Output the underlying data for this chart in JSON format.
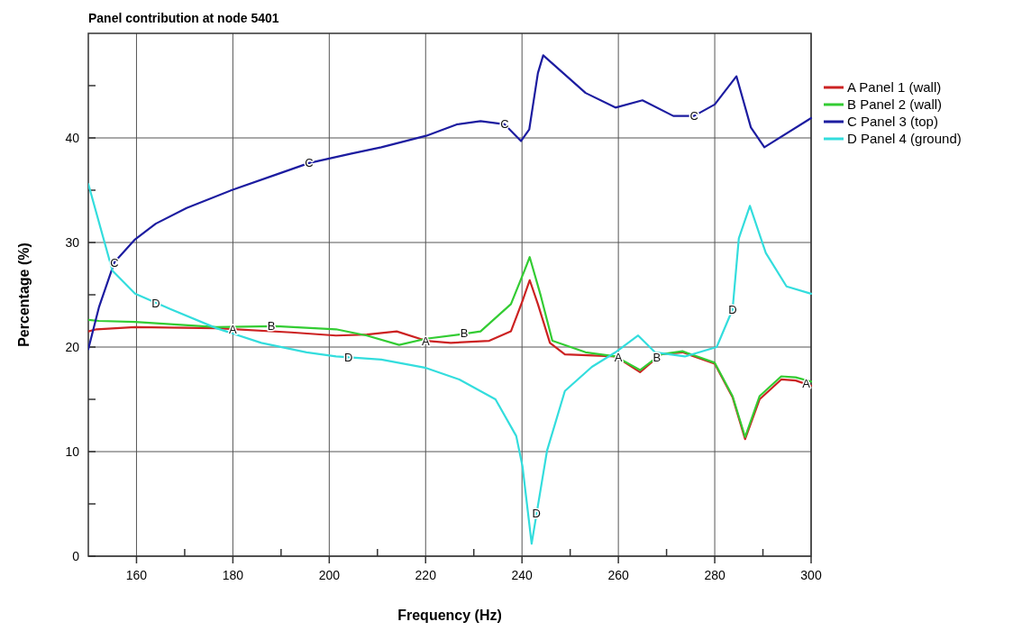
{
  "chart_data": {
    "type": "line",
    "title": "Panel contribution at node 5401",
    "xlabel": "Frequency (Hz)",
    "ylabel": "Percentage (%)",
    "xlim": [
      150,
      300
    ],
    "xticks": [
      {
        "value": 160,
        "label": "160"
      },
      {
        "value": 170,
        "label": null
      },
      {
        "value": 180,
        "label": "180"
      },
      {
        "value": 190,
        "label": null
      },
      {
        "value": 200,
        "label": "200"
      },
      {
        "value": 210,
        "label": null
      },
      {
        "value": 220,
        "label": "220"
      },
      {
        "value": 230,
        "label": null
      },
      {
        "value": 240,
        "label": "240"
      },
      {
        "value": 250,
        "label": null
      },
      {
        "value": 260,
        "label": "260"
      },
      {
        "value": 270,
        "label": null
      },
      {
        "value": 280,
        "label": "280"
      },
      {
        "value": 290,
        "label": null
      },
      {
        "value": 300,
        "label": "300"
      }
    ],
    "ylim": [
      0,
      50
    ],
    "yticks": [
      {
        "value": 0,
        "label": "0"
      },
      {
        "value": 5,
        "label": null
      },
      {
        "value": 10,
        "label": "10"
      },
      {
        "value": 15,
        "label": null
      },
      {
        "value": 20,
        "label": "20"
      },
      {
        "value": 25,
        "label": null
      },
      {
        "value": 30,
        "label": "30"
      },
      {
        "value": 35,
        "label": null
      },
      {
        "value": 40,
        "label": "40"
      },
      {
        "value": 45,
        "label": null
      }
    ],
    "grid": true,
    "legend": "right",
    "marker": "none",
    "line_style": "solid",
    "series": [
      {
        "name": "A Panel 1 (wall)",
        "color": "#cc2222",
        "x": [
          150,
          151.7,
          159.7,
          176.6,
          192.1,
          201.4,
          207.8,
          214,
          220.1,
          225.2,
          233.2,
          237.7,
          240.1,
          241.6,
          243.3,
          245.8,
          248.9,
          259.4,
          264.5,
          268.8,
          273.3,
          280,
          283.7,
          286.3,
          289.3,
          293.8,
          296.8,
          300
        ],
        "values": [
          21.5,
          21.7,
          21.9,
          21.8,
          21.4,
          21.1,
          21.2,
          21.5,
          20.6,
          20.4,
          20.6,
          21.5,
          24.4,
          26.4,
          24.1,
          20.4,
          19.3,
          19.1,
          17.6,
          19.3,
          19.5,
          18.4,
          15.2,
          11.2,
          15,
          16.9,
          16.8,
          16.3
        ]
      },
      {
        "name": "B Panel 2 (wall)",
        "color": "#33cc33",
        "x": [
          150,
          152.2,
          159.7,
          176.6,
          189,
          201.4,
          207.8,
          214.5,
          220.1,
          227,
          231.4,
          237.7,
          240.5,
          241.6,
          243.9,
          246.3,
          253.2,
          259.4,
          264.5,
          268.8,
          273.3,
          280,
          283.7,
          286.3,
          289.3,
          293.8,
          296.8,
          300
        ],
        "values": [
          22.6,
          22.5,
          22.4,
          21.9,
          22,
          21.7,
          21.1,
          20.2,
          20.8,
          21.2,
          21.5,
          24.1,
          27.3,
          28.6,
          24.9,
          20.6,
          19.5,
          19.1,
          17.8,
          19.3,
          19.6,
          18.5,
          15.3,
          11.4,
          15.3,
          17.2,
          17.1,
          16.7
        ]
      },
      {
        "name": "C Panel 3 (top)",
        "color": "#1c1ca0",
        "x": [
          150,
          152.2,
          155.4,
          159.7,
          164,
          170.4,
          179.7,
          189,
          195.8,
          204.6,
          210.8,
          220.1,
          226.5,
          231.4,
          236.4,
          239.8,
          241.5,
          243.3,
          244.4,
          253.2,
          259.4,
          265,
          271.4,
          275.7,
          280,
          284.5,
          287.5,
          290.3,
          300
        ],
        "values": [
          19.8,
          23.8,
          28.1,
          30.3,
          31.8,
          33.3,
          35,
          36.5,
          37.6,
          38.5,
          39.1,
          40.2,
          41.3,
          41.6,
          41.3,
          39.7,
          40.8,
          46.2,
          47.9,
          44.3,
          42.9,
          43.6,
          42.1,
          42.1,
          43.2,
          45.9,
          41,
          39.1,
          41.9
        ]
      },
      {
        "name": "D Panel 4 (ground)",
        "color": "#33dddd",
        "x": [
          150,
          155,
          159.7,
          167.2,
          176.6,
          185.9,
          195.3,
          201.4,
          210.8,
          220.1,
          227,
          234.5,
          238.8,
          240.1,
          242,
          245.2,
          248.9,
          254.5,
          259.4,
          264.1,
          267.6,
          273.8,
          280.4,
          283.7,
          285,
          287.3,
          290.6,
          294.9,
          300
        ],
        "values": [
          35.6,
          27.3,
          25.1,
          23.6,
          21.8,
          20.4,
          19.5,
          19.1,
          18.8,
          18,
          16.9,
          15,
          11.5,
          8.6,
          1.2,
          10.1,
          15.8,
          18.1,
          19.5,
          21.1,
          19.5,
          19.1,
          20,
          23.6,
          30.4,
          33.5,
          29,
          25.8,
          25.1
        ]
      }
    ],
    "annotations": [
      {
        "text": "A",
        "x": 180,
        "y": 21.7
      },
      {
        "text": "A",
        "x": 220,
        "y": 20.6
      },
      {
        "text": "A",
        "x": 260,
        "y": 19
      },
      {
        "text": "A",
        "x": 299,
        "y": 16.5
      },
      {
        "text": "B",
        "x": 188,
        "y": 22
      },
      {
        "text": "B",
        "x": 228,
        "y": 21.3
      },
      {
        "text": "B",
        "x": 268,
        "y": 19
      },
      {
        "text": "C",
        "x": 155.4,
        "y": 28.1
      },
      {
        "text": "C",
        "x": 195.8,
        "y": 37.6
      },
      {
        "text": "C",
        "x": 236.4,
        "y": 41.3
      },
      {
        "text": "C",
        "x": 275.7,
        "y": 42.1
      },
      {
        "text": "D",
        "x": 164,
        "y": 24.2
      },
      {
        "text": "D",
        "x": 204,
        "y": 19
      },
      {
        "text": "D",
        "x": 243,
        "y": 4.1
      },
      {
        "text": "D",
        "x": 283.7,
        "y": 23.6
      }
    ]
  }
}
